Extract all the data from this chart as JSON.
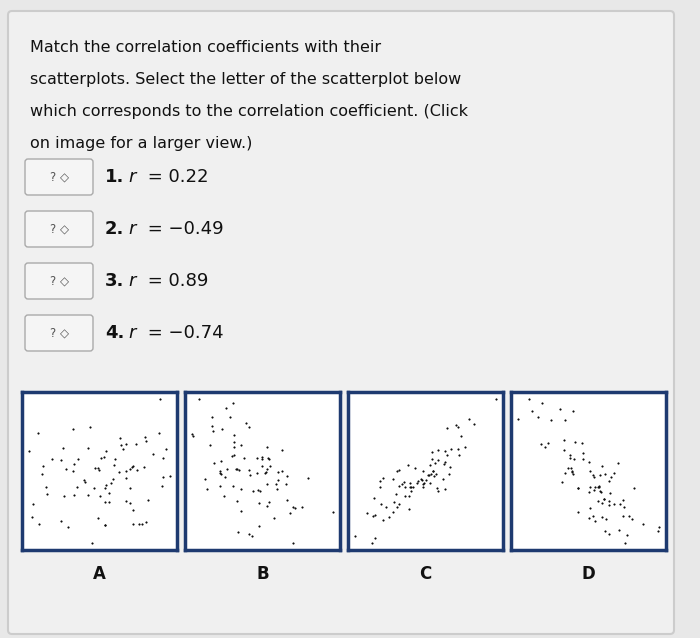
{
  "questions": [
    {
      "num": "1.",
      "r_eq": " = 0.22"
    },
    {
      "num": "2.",
      "r_eq": " = −0.49"
    },
    {
      "num": "3.",
      "r_eq": " = 0.89"
    },
    {
      "num": "4.",
      "r_eq": " = −0.74"
    }
  ],
  "plot_labels": [
    "A",
    "B",
    "C",
    "D"
  ],
  "correlations": [
    0.22,
    -0.49,
    0.89,
    -0.74
  ],
  "background_color": "#e8e8e8",
  "card_color": "#ebebeb",
  "panel_bg": "#ffffff",
  "border_color": "#1e3a70",
  "text_color": "#111111",
  "dot_color": "#111111",
  "box_edge_color": "#aaaaaa",
  "box_face_color": "#f5f5f5",
  "n_points": 80,
  "seeds": [
    42,
    59,
    76,
    93
  ],
  "title_lines": [
    "Match the correlation coefficients with their",
    "scatterplots. Select the letter of the scatterplot below",
    "which corresponds to the correlation coefficient. (Click",
    "on image for a larger view.)"
  ]
}
